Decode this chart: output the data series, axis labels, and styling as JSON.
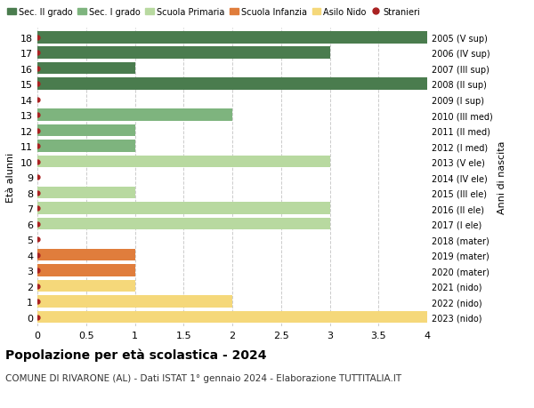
{
  "ages": [
    18,
    17,
    16,
    15,
    14,
    13,
    12,
    11,
    10,
    9,
    8,
    7,
    6,
    5,
    4,
    3,
    2,
    1,
    0
  ],
  "right_labels": [
    "2005 (V sup)",
    "2006 (IV sup)",
    "2007 (III sup)",
    "2008 (II sup)",
    "2009 (I sup)",
    "2010 (III med)",
    "2011 (II med)",
    "2012 (I med)",
    "2013 (V ele)",
    "2014 (IV ele)",
    "2015 (III ele)",
    "2016 (II ele)",
    "2017 (I ele)",
    "2018 (mater)",
    "2019 (mater)",
    "2020 (mater)",
    "2021 (nido)",
    "2022 (nido)",
    "2023 (nido)"
  ],
  "bar_values": [
    4.0,
    3.0,
    1.0,
    4.0,
    0,
    2.0,
    1.0,
    1.0,
    3.0,
    0,
    1.0,
    3.0,
    3.0,
    0,
    1.0,
    1.0,
    1.0,
    2.0,
    4.0
  ],
  "bar_colors": [
    "#4a7c4e",
    "#4a7c4e",
    "#4a7c4e",
    "#4a7c4e",
    "#4a7c4e",
    "#7eb47e",
    "#7eb47e",
    "#7eb47e",
    "#b8d9a0",
    "#b8d9a0",
    "#b8d9a0",
    "#b8d9a0",
    "#b8d9a0",
    "#e07d3c",
    "#e07d3c",
    "#e07d3c",
    "#f5d87a",
    "#f5d87a",
    "#f5d87a"
  ],
  "stranieri_color": "#aa2222",
  "legend_labels": [
    "Sec. II grado",
    "Sec. I grado",
    "Scuola Primaria",
    "Scuola Infanzia",
    "Asilo Nido",
    "Stranieri"
  ],
  "legend_colors": [
    "#4a7c4e",
    "#7eb47e",
    "#b8d9a0",
    "#e07d3c",
    "#f5d87a",
    "#aa2222"
  ],
  "ylabel_left": "Età alunni",
  "ylabel_right": "Anni di nascita",
  "xlim": [
    0,
    4.0
  ],
  "xticks": [
    0,
    0.5,
    1.0,
    1.5,
    2.0,
    2.5,
    3.0,
    3.5,
    4.0
  ],
  "title": "Popolazione per età scolastica - 2024",
  "subtitle": "COMUNE DI RIVARONE (AL) - Dati ISTAT 1° gennaio 2024 - Elaborazione TUTTITALIA.IT",
  "background_color": "#ffffff",
  "grid_color": "#cccccc"
}
